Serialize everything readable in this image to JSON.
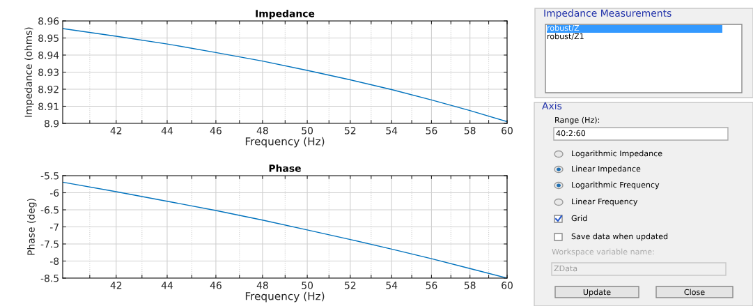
{
  "chart_data": [
    {
      "type": "line",
      "title": "Impedance",
      "xlabel": "Frequency (Hz)",
      "ylabel": "Impedance (ohms)",
      "log": "x",
      "grid": true,
      "x": [
        40,
        42,
        44,
        46,
        48,
        50,
        52,
        54,
        56,
        58,
        60
      ],
      "series": [
        {
          "color": "#0072bd",
          "values": [
            8.9555,
            8.951,
            8.9465,
            8.9415,
            8.9365,
            8.931,
            8.9255,
            8.9198,
            8.9137,
            8.9075,
            8.901
          ]
        }
      ],
      "xlim": [
        40,
        60
      ],
      "xticks": [
        {
          "value": 41,
          "label": null
        },
        42,
        {
          "value": 43,
          "label": null
        },
        44,
        {
          "value": 45,
          "label": null
        },
        46,
        {
          "value": 47,
          "label": null
        },
        48,
        {
          "value": 49,
          "label": null
        },
        50,
        {
          "value": 51,
          "label": null
        },
        52,
        {
          "value": 53,
          "label": null
        },
        54,
        {
          "value": 55,
          "label": null
        },
        56,
        {
          "value": 57,
          "label": null
        },
        58,
        {
          "value": 59,
          "label": null
        },
        60
      ],
      "ylim": [
        8.9,
        8.96
      ],
      "yticks": [
        8.9,
        8.91,
        8.92,
        8.93,
        8.94,
        8.95,
        8.96
      ]
    },
    {
      "type": "line",
      "title": "Phase",
      "xlabel": "Frequency (Hz)",
      "ylabel": "Phase (deg)",
      "log": "x",
      "grid": true,
      "x": [
        40,
        42,
        44,
        46,
        48,
        50,
        52,
        54,
        56,
        58,
        60
      ],
      "series": [
        {
          "color": "#0072bd",
          "values": [
            -5.69,
            -5.97,
            -6.25,
            -6.52,
            -6.8,
            -7.09,
            -7.37,
            -7.65,
            -7.93,
            -8.22,
            -8.5
          ]
        }
      ],
      "xlim": [
        40,
        60
      ],
      "xticks": [
        {
          "value": 41,
          "label": null
        },
        42,
        {
          "value": 43,
          "label": null
        },
        44,
        {
          "value": 45,
          "label": null
        },
        46,
        {
          "value": 47,
          "label": null
        },
        48,
        {
          "value": 49,
          "label": null
        },
        50,
        {
          "value": 51,
          "label": null
        },
        52,
        {
          "value": 53,
          "label": null
        },
        54,
        {
          "value": 55,
          "label": null
        },
        56,
        {
          "value": 57,
          "label": null
        },
        58,
        {
          "value": 59,
          "label": null
        },
        60
      ],
      "ylim": [
        -8.5,
        -5.5
      ],
      "yticks": [
        -8.5,
        -8,
        -7.5,
        -7,
        -6.5,
        -6,
        -5.5
      ]
    },
    {
      "type": "other",
      "annotations": [
        "Impedance Measurements",
        "robust/Z",
        "robust/Z1",
        "Axis",
        "Range (Hz):",
        "40:2:60",
        "Logarithmic Impedance",
        "Linear Impedance",
        "Logarithmic Frequency",
        "Linear Frequency",
        "Grid",
        "Save data when updated",
        "Workspace variable name:",
        "ZData",
        "Update",
        "Close"
      ]
    }
  ]
}
